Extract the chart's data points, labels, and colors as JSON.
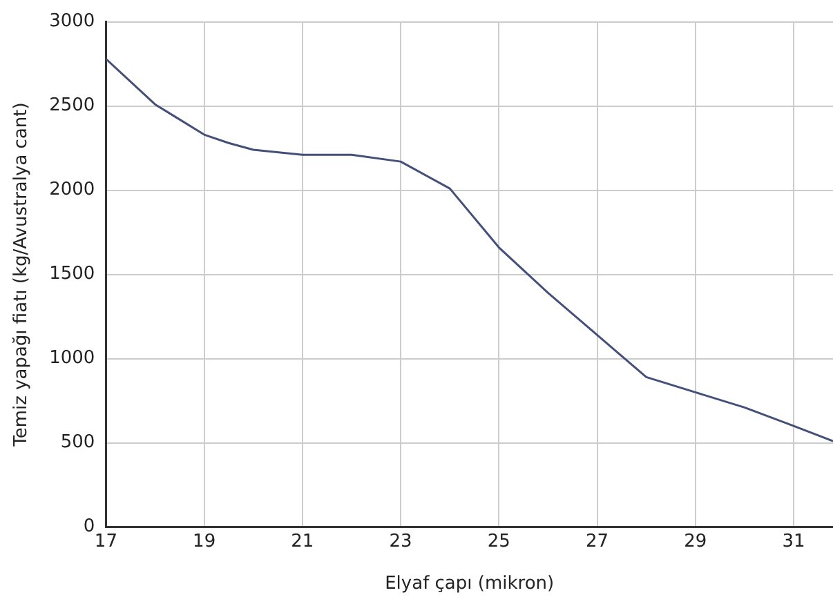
{
  "chart_data": {
    "type": "line",
    "xlabel": "Elyaf çapı (mikron)",
    "ylabel": "Temiz yapağı fiatı (kg/Avustralya cant)",
    "x": [
      17,
      18,
      19,
      19.5,
      20,
      21,
      22,
      23,
      24,
      25,
      26,
      27,
      28,
      29,
      30,
      31,
      31.8
    ],
    "series": [
      {
        "color": "#44507a",
        "values": [
          2780,
          2510,
          2330,
          2280,
          2240,
          2210,
          2210,
          2170,
          2010,
          1660,
          1390,
          1140,
          890,
          800,
          710,
          600,
          510
        ]
      }
    ],
    "xlim": [
      17,
      31.8
    ],
    "xticks": [
      17,
      19,
      21,
      23,
      25,
      27,
      29,
      31
    ],
    "ylim": [
      0,
      3000
    ],
    "yticks": [
      0,
      500,
      1000,
      1500,
      2000,
      2500,
      3000
    ],
    "grid": true,
    "legend": false,
    "marker": "none",
    "line_style": "solid"
  }
}
